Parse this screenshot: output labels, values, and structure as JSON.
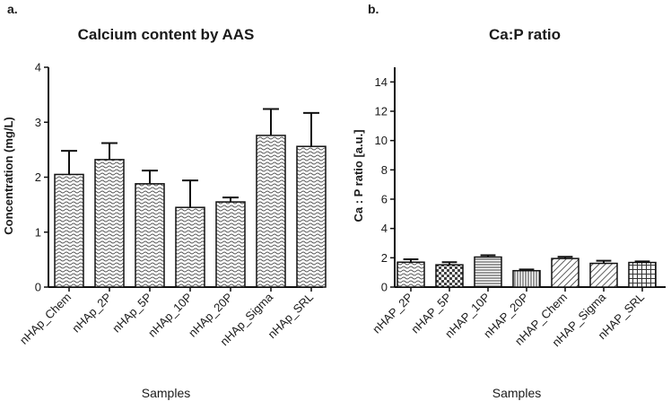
{
  "chart_data": [
    {
      "panel": "a.",
      "type": "bar",
      "title": "Calcium content by AAS",
      "xlabel": "Samples",
      "ylabel": "Concentration (mg/L)",
      "ylim": [
        0,
        4
      ],
      "yticks": [
        0,
        1,
        2,
        3,
        4
      ],
      "categories": [
        "nHAp_Chem",
        "nHAp_2P",
        "nHAp_5P",
        "nHAp_10P",
        "nHAp_20P",
        "nHAp_Sigma",
        "nHAp_SRL"
      ],
      "values": [
        2.05,
        2.32,
        1.88,
        1.45,
        1.55,
        2.76,
        2.56
      ],
      "errors": [
        0.43,
        0.3,
        0.24,
        0.49,
        0.08,
        0.48,
        0.61
      ],
      "bar_pattern": "wave",
      "grid": false
    },
    {
      "panel": "b.",
      "type": "bar",
      "title": "Ca:P ratio",
      "xlabel": "Samples",
      "ylabel": "Ca : P ratio [a.u.]",
      "ylim": [
        0,
        15
      ],
      "yticks": [
        0,
        2,
        4,
        6,
        8,
        10,
        12,
        14
      ],
      "categories": [
        "nHAP_2P",
        "nHAP_5P",
        "nHAP_10P",
        "nHAP_20P",
        "nHAP_Chem",
        "nHAP_Sigma",
        "nHAP_SRL"
      ],
      "values": [
        1.7,
        1.52,
        2.05,
        1.12,
        1.95,
        1.62,
        1.68
      ],
      "errors": [
        0.2,
        0.18,
        0.12,
        0.08,
        0.12,
        0.18,
        0.07
      ],
      "bar_patterns": [
        "wave",
        "check",
        "hlines",
        "vlines",
        "diag",
        "diag",
        "grid"
      ],
      "grid": false
    }
  ]
}
